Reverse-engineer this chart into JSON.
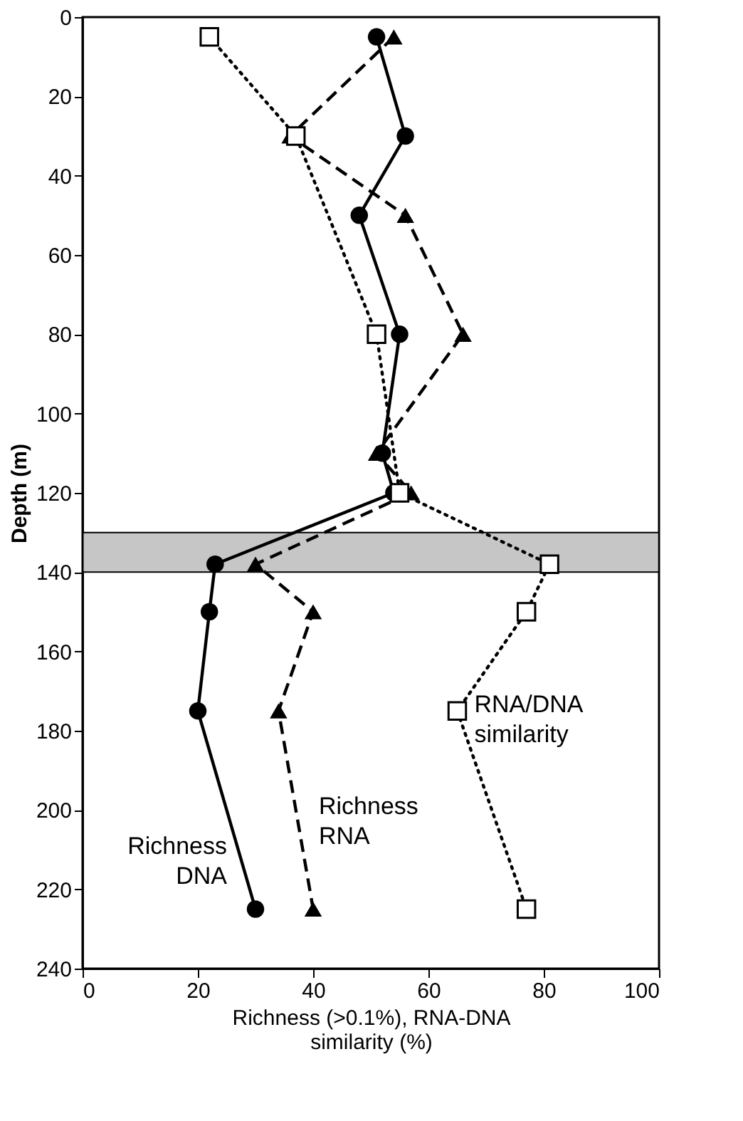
{
  "chart_data": {
    "type": "line",
    "orientation": "horizontal",
    "xlabel": "Richness (>0.1%), RNA-DNA similarity (%)",
    "ylabel": "Depth (m)",
    "xlim": [
      0,
      100
    ],
    "xticks": [
      0,
      20,
      40,
      60,
      80,
      100
    ],
    "ylim": [
      240,
      0
    ],
    "yticks": [
      0,
      20,
      40,
      60,
      80,
      100,
      120,
      140,
      160,
      180,
      200,
      220,
      240
    ],
    "legend": false,
    "grid": false,
    "series": [
      {
        "name": "Richness DNA",
        "color": "#000000",
        "marker": "circle",
        "line_style": "solid",
        "x": [
          5,
          30,
          50,
          80,
          110,
          120,
          138,
          150,
          175,
          225
        ],
        "values": [
          51,
          56,
          48,
          55,
          52,
          54,
          23,
          22,
          20,
          30
        ]
      },
      {
        "name": "Richness RNA",
        "color": "#000000",
        "marker": "triangle",
        "line_style": "dashed",
        "x": [
          5,
          30,
          50,
          80,
          110,
          120,
          138,
          150,
          175,
          225
        ],
        "values": [
          54,
          36,
          56,
          66,
          51,
          57,
          30,
          40,
          34,
          40
        ]
      },
      {
        "name": "RNA/DNA similarity",
        "color": "#000000",
        "marker": "square",
        "line_style": "dotted",
        "x": [
          5,
          30,
          80,
          120,
          138,
          150,
          175,
          225
        ],
        "values": [
          22,
          37,
          51,
          55,
          81,
          77,
          65,
          77
        ]
      }
    ],
    "bands": [
      {
        "axis": "y",
        "from": 130,
        "to": 140,
        "color": "#a0a0a0"
      }
    ]
  }
}
